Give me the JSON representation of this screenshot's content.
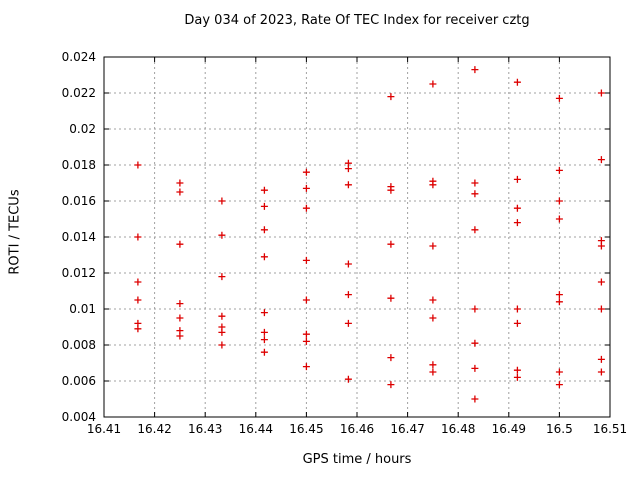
{
  "chart_data": {
    "type": "scatter",
    "title": "Day 034 of 2023, Rate Of TEC Index for receiver cztg",
    "xlabel": "GPS time / hours",
    "ylabel": "ROTI / TECUs",
    "xlim": [
      16.41,
      16.51
    ],
    "ylim": [
      0.004,
      0.024
    ],
    "grid": true,
    "legend": "none",
    "marker": "plus",
    "colors": {
      "marker": "#dd0000",
      "grid": "#a0a0a0",
      "axis": "#000000",
      "background": "#ffffff"
    },
    "xticks": {
      "values": [
        16.41,
        16.42,
        16.43,
        16.44,
        16.45,
        16.46,
        16.47,
        16.48,
        16.49,
        16.5,
        16.51
      ],
      "labels": [
        "16.41",
        "16.42",
        "16.43",
        "16.44",
        "16.45",
        "16.46",
        "16.47",
        "16.48",
        "16.49",
        "16.5",
        "16.51"
      ]
    },
    "yticks": {
      "values": [
        0.004,
        0.006,
        0.008,
        0.01,
        0.012,
        0.014,
        0.016,
        0.018,
        0.02,
        0.022,
        0.024
      ],
      "labels": [
        "0.004",
        "0.006",
        "0.008",
        "0.01",
        "0.012",
        "0.014",
        "0.016",
        "0.018",
        "0.02",
        "0.022",
        "0.024"
      ]
    },
    "series": [
      {
        "name": "ROTI",
        "points": [
          [
            16.4167,
            0.018
          ],
          [
            16.4167,
            0.014
          ],
          [
            16.4167,
            0.0115
          ],
          [
            16.4167,
            0.0105
          ],
          [
            16.4167,
            0.0092
          ],
          [
            16.4167,
            0.0089
          ],
          [
            16.425,
            0.017
          ],
          [
            16.425,
            0.0165
          ],
          [
            16.425,
            0.0136
          ],
          [
            16.425,
            0.0103
          ],
          [
            16.425,
            0.0095
          ],
          [
            16.425,
            0.0088
          ],
          [
            16.425,
            0.0085
          ],
          [
            16.4333,
            0.016
          ],
          [
            16.4333,
            0.0141
          ],
          [
            16.4333,
            0.0118
          ],
          [
            16.4333,
            0.0096
          ],
          [
            16.4333,
            0.009
          ],
          [
            16.4333,
            0.0087
          ],
          [
            16.4333,
            0.008
          ],
          [
            16.4417,
            0.0166
          ],
          [
            16.4417,
            0.0157
          ],
          [
            16.4417,
            0.0144
          ],
          [
            16.4417,
            0.0129
          ],
          [
            16.4417,
            0.0098
          ],
          [
            16.4417,
            0.0087
          ],
          [
            16.4417,
            0.0083
          ],
          [
            16.4417,
            0.0076
          ],
          [
            16.45,
            0.0176
          ],
          [
            16.45,
            0.0167
          ],
          [
            16.45,
            0.0156
          ],
          [
            16.45,
            0.0127
          ],
          [
            16.45,
            0.0105
          ],
          [
            16.45,
            0.0086
          ],
          [
            16.45,
            0.0082
          ],
          [
            16.45,
            0.0068
          ],
          [
            16.4583,
            0.0181
          ],
          [
            16.4583,
            0.0178
          ],
          [
            16.4583,
            0.0169
          ],
          [
            16.4583,
            0.0125
          ],
          [
            16.4583,
            0.0108
          ],
          [
            16.4583,
            0.0092
          ],
          [
            16.4583,
            0.0061
          ],
          [
            16.4667,
            0.0218
          ],
          [
            16.4667,
            0.0168
          ],
          [
            16.4667,
            0.0166
          ],
          [
            16.4667,
            0.0136
          ],
          [
            16.4667,
            0.0106
          ],
          [
            16.4667,
            0.0073
          ],
          [
            16.4667,
            0.0058
          ],
          [
            16.475,
            0.0225
          ],
          [
            16.475,
            0.0171
          ],
          [
            16.475,
            0.0169
          ],
          [
            16.475,
            0.0135
          ],
          [
            16.475,
            0.0105
          ],
          [
            16.475,
            0.0095
          ],
          [
            16.475,
            0.0069
          ],
          [
            16.475,
            0.0065
          ],
          [
            16.4833,
            0.0233
          ],
          [
            16.4833,
            0.017
          ],
          [
            16.4833,
            0.0164
          ],
          [
            16.4833,
            0.0144
          ],
          [
            16.4833,
            0.01
          ],
          [
            16.4833,
            0.0081
          ],
          [
            16.4833,
            0.0067
          ],
          [
            16.4833,
            0.005
          ],
          [
            16.4917,
            0.0226
          ],
          [
            16.4917,
            0.0172
          ],
          [
            16.4917,
            0.0156
          ],
          [
            16.4917,
            0.0148
          ],
          [
            16.4917,
            0.01
          ],
          [
            16.4917,
            0.0092
          ],
          [
            16.4917,
            0.0066
          ],
          [
            16.4917,
            0.0062
          ],
          [
            16.5,
            0.0217
          ],
          [
            16.5,
            0.0177
          ],
          [
            16.5,
            0.016
          ],
          [
            16.5,
            0.015
          ],
          [
            16.5,
            0.0108
          ],
          [
            16.5,
            0.0104
          ],
          [
            16.5,
            0.0065
          ],
          [
            16.5,
            0.0058
          ],
          [
            16.5083,
            0.022
          ],
          [
            16.5083,
            0.0183
          ],
          [
            16.5083,
            0.0138
          ],
          [
            16.5083,
            0.0135
          ],
          [
            16.5083,
            0.0115
          ],
          [
            16.5083,
            0.01
          ],
          [
            16.5083,
            0.0072
          ],
          [
            16.5083,
            0.0065
          ]
        ]
      }
    ]
  }
}
